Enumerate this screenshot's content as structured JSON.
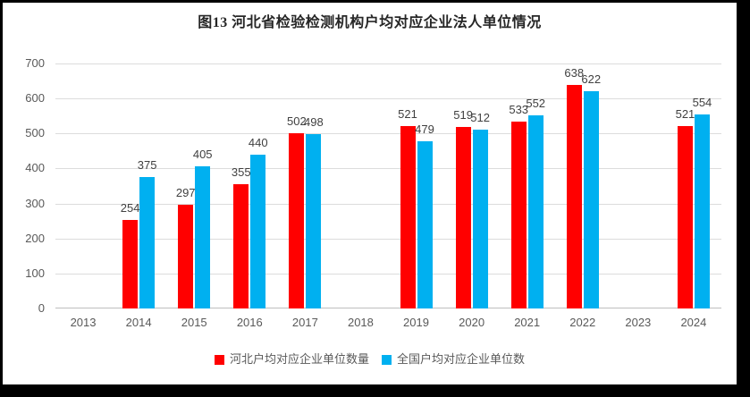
{
  "chart_data": {
    "type": "bar",
    "title": "图13 河北省检验检测机构户均对应企业法人单位情况",
    "categories": [
      "2013",
      "2014",
      "2015",
      "2016",
      "2017",
      "2018",
      "2019",
      "2020",
      "2021",
      "2022",
      "2023",
      "2024"
    ],
    "series": [
      {
        "name": "河北户均对应企业单位数量",
        "color": "#ff0000",
        "values": [
          null,
          254,
          297,
          355,
          502,
          null,
          521,
          519,
          533,
          638,
          null,
          521
        ]
      },
      {
        "name": "全国户均对应企业单位数",
        "color": "#00b0f0",
        "values": [
          null,
          375,
          405,
          440,
          498,
          null,
          479,
          512,
          552,
          622,
          null,
          554
        ]
      }
    ],
    "xlabel": "",
    "ylabel": "",
    "ylim": [
      0,
      700
    ],
    "ytick_step": 100,
    "grid": "horizontal",
    "legend_position": "bottom",
    "data_labels": true
  },
  "style": {
    "frame_border_color": "#000000",
    "gridline_color": "#dcdcdc",
    "axis_line_color": "#bfbfbf",
    "tick_label_color": "#595959",
    "data_label_color": "#404040",
    "title_color": "#262626"
  }
}
